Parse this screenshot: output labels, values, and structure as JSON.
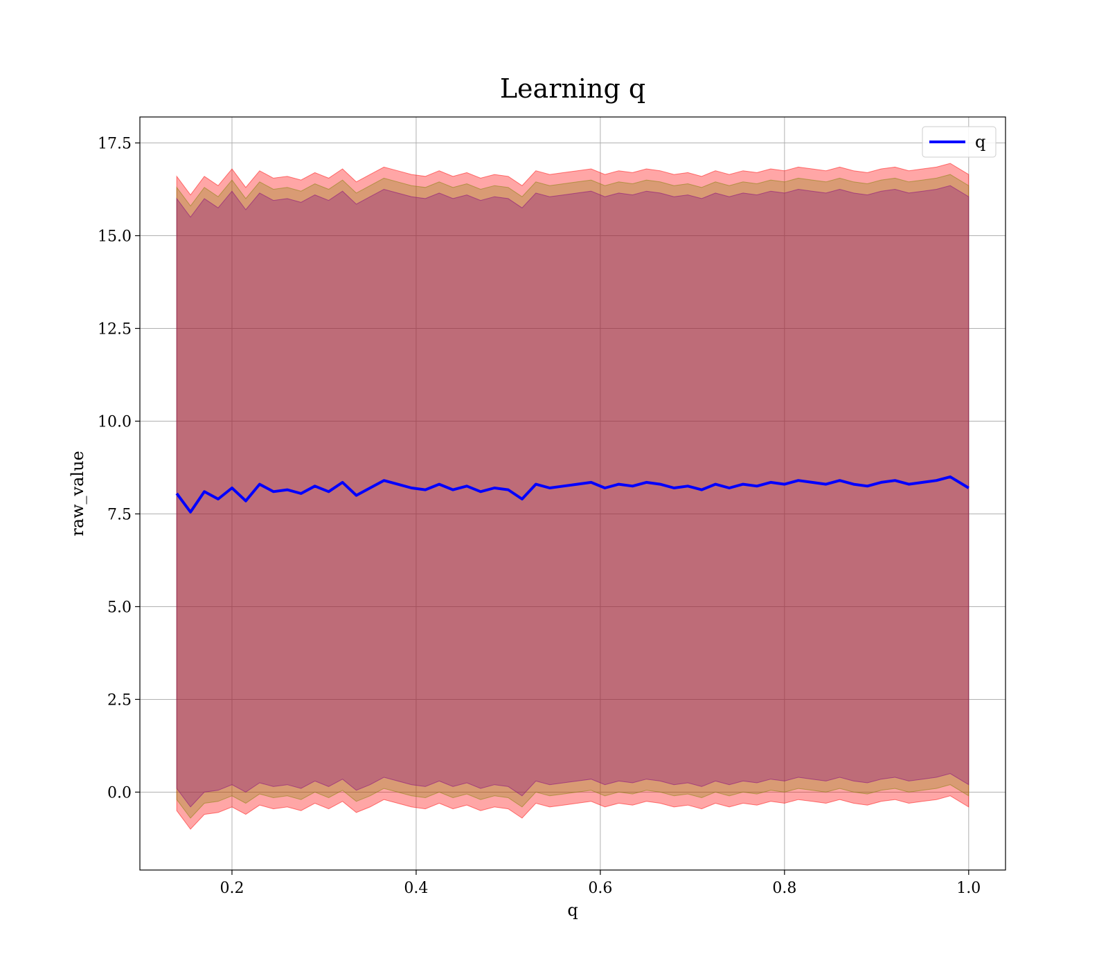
{
  "chart_data": {
    "type": "line",
    "title": "Learning q",
    "xlabel": "q",
    "ylabel": "raw_value",
    "xlim": [
      0.1,
      1.04
    ],
    "ylim": [
      -2.1,
      18.2
    ],
    "x_ticks": [
      0.2,
      0.4,
      0.6,
      0.8,
      1.0
    ],
    "y_ticks": [
      0.0,
      2.5,
      5.0,
      7.5,
      10.0,
      12.5,
      15.0,
      17.5
    ],
    "x_tick_labels": [
      "0.2",
      "0.4",
      "0.6",
      "0.8",
      "1.0"
    ],
    "y_tick_labels": [
      "0.0",
      "2.5",
      "5.0",
      "7.5",
      "10.0",
      "12.5",
      "15.0",
      "17.5"
    ],
    "grid": true,
    "legend_position": "top-right",
    "x": [
      0.14,
      0.155,
      0.17,
      0.185,
      0.2,
      0.215,
      0.23,
      0.245,
      0.26,
      0.275,
      0.29,
      0.305,
      0.32,
      0.335,
      0.35,
      0.365,
      0.38,
      0.395,
      0.41,
      0.425,
      0.44,
      0.455,
      0.47,
      0.485,
      0.5,
      0.515,
      0.53,
      0.545,
      0.56,
      0.575,
      0.59,
      0.605,
      0.62,
      0.635,
      0.65,
      0.665,
      0.68,
      0.695,
      0.71,
      0.725,
      0.74,
      0.755,
      0.77,
      0.785,
      0.8,
      0.815,
      0.83,
      0.845,
      0.86,
      0.875,
      0.89,
      0.905,
      0.92,
      0.935,
      0.95,
      0.965,
      0.98,
      1.0
    ],
    "series": [
      {
        "name": "q",
        "color": "#0000ff",
        "values": [
          8.05,
          7.55,
          8.1,
          7.9,
          8.2,
          7.85,
          8.3,
          8.1,
          8.15,
          8.05,
          8.25,
          8.1,
          8.35,
          8.0,
          8.2,
          8.4,
          8.3,
          8.2,
          8.15,
          8.3,
          8.15,
          8.25,
          8.1,
          8.2,
          8.15,
          7.9,
          8.3,
          8.2,
          8.25,
          8.3,
          8.35,
          8.2,
          8.3,
          8.25,
          8.35,
          8.3,
          8.2,
          8.25,
          8.15,
          8.3,
          8.2,
          8.3,
          8.25,
          8.35,
          8.3,
          8.4,
          8.35,
          8.3,
          8.4,
          8.3,
          8.25,
          8.35,
          8.4,
          8.3,
          8.35,
          8.4,
          8.5,
          8.2
        ]
      }
    ],
    "bands": [
      {
        "color": "#ff0000",
        "opacity": 0.35,
        "lower": [
          -0.5,
          -1.0,
          -0.6,
          -0.55,
          -0.4,
          -0.6,
          -0.35,
          -0.45,
          -0.4,
          -0.5,
          -0.3,
          -0.45,
          -0.25,
          -0.55,
          -0.4,
          -0.2,
          -0.3,
          -0.4,
          -0.45,
          -0.3,
          -0.45,
          -0.35,
          -0.5,
          -0.4,
          -0.45,
          -0.7,
          -0.3,
          -0.4,
          -0.35,
          -0.3,
          -0.25,
          -0.4,
          -0.3,
          -0.35,
          -0.25,
          -0.3,
          -0.4,
          -0.35,
          -0.45,
          -0.3,
          -0.4,
          -0.3,
          -0.35,
          -0.25,
          -0.3,
          -0.2,
          -0.25,
          -0.3,
          -0.2,
          -0.3,
          -0.35,
          -0.25,
          -0.2,
          -0.3,
          -0.25,
          -0.2,
          -0.1,
          -0.4
        ],
        "upper": [
          16.6,
          16.1,
          16.6,
          16.35,
          16.8,
          16.3,
          16.75,
          16.55,
          16.6,
          16.5,
          16.7,
          16.55,
          16.8,
          16.45,
          16.65,
          16.85,
          16.75,
          16.65,
          16.6,
          16.75,
          16.6,
          16.7,
          16.55,
          16.65,
          16.6,
          16.35,
          16.75,
          16.65,
          16.7,
          16.75,
          16.8,
          16.65,
          16.75,
          16.7,
          16.8,
          16.75,
          16.65,
          16.7,
          16.6,
          16.75,
          16.65,
          16.75,
          16.7,
          16.8,
          16.75,
          16.85,
          16.8,
          16.75,
          16.85,
          16.75,
          16.7,
          16.8,
          16.85,
          16.75,
          16.8,
          16.85,
          16.95,
          16.65
        ]
      },
      {
        "color": "#808000",
        "opacity": 0.3,
        "lower": [
          -0.2,
          -0.7,
          -0.3,
          -0.25,
          -0.1,
          -0.3,
          -0.05,
          -0.15,
          -0.1,
          -0.2,
          0.0,
          -0.15,
          0.05,
          -0.25,
          -0.1,
          0.1,
          0.0,
          -0.1,
          -0.15,
          0.0,
          -0.15,
          -0.05,
          -0.2,
          -0.1,
          -0.15,
          -0.4,
          0.0,
          -0.1,
          -0.05,
          0.0,
          0.05,
          -0.1,
          0.0,
          -0.05,
          0.05,
          0.0,
          -0.1,
          -0.05,
          -0.15,
          0.0,
          -0.1,
          0.0,
          -0.05,
          0.05,
          0.0,
          0.1,
          0.05,
          0.0,
          0.1,
          0.0,
          -0.05,
          0.05,
          0.1,
          0.0,
          0.05,
          0.1,
          0.2,
          -0.1
        ],
        "upper": [
          16.3,
          15.8,
          16.3,
          16.05,
          16.5,
          16.0,
          16.45,
          16.25,
          16.3,
          16.2,
          16.4,
          16.25,
          16.5,
          16.15,
          16.35,
          16.55,
          16.45,
          16.35,
          16.3,
          16.45,
          16.3,
          16.4,
          16.25,
          16.35,
          16.3,
          16.05,
          16.45,
          16.35,
          16.4,
          16.45,
          16.5,
          16.35,
          16.45,
          16.4,
          16.5,
          16.45,
          16.35,
          16.4,
          16.3,
          16.45,
          16.35,
          16.45,
          16.4,
          16.5,
          16.45,
          16.55,
          16.5,
          16.45,
          16.55,
          16.45,
          16.4,
          16.5,
          16.55,
          16.45,
          16.5,
          16.55,
          16.65,
          16.35
        ]
      },
      {
        "color": "#800080",
        "opacity": 0.3,
        "lower": [
          0.1,
          -0.4,
          0.0,
          0.05,
          0.2,
          0.0,
          0.25,
          0.15,
          0.2,
          0.1,
          0.3,
          0.15,
          0.35,
          0.05,
          0.2,
          0.4,
          0.3,
          0.2,
          0.15,
          0.3,
          0.15,
          0.25,
          0.1,
          0.2,
          0.15,
          -0.1,
          0.3,
          0.2,
          0.25,
          0.3,
          0.35,
          0.2,
          0.3,
          0.25,
          0.35,
          0.3,
          0.2,
          0.25,
          0.15,
          0.3,
          0.2,
          0.3,
          0.25,
          0.35,
          0.3,
          0.4,
          0.35,
          0.3,
          0.4,
          0.3,
          0.25,
          0.35,
          0.4,
          0.3,
          0.35,
          0.4,
          0.5,
          0.2
        ],
        "upper": [
          16.0,
          15.5,
          16.0,
          15.75,
          16.2,
          15.7,
          16.15,
          15.95,
          16.0,
          15.9,
          16.1,
          15.95,
          16.2,
          15.85,
          16.05,
          16.25,
          16.15,
          16.05,
          16.0,
          16.15,
          16.0,
          16.1,
          15.95,
          16.05,
          16.0,
          15.75,
          16.15,
          16.05,
          16.1,
          16.15,
          16.2,
          16.05,
          16.15,
          16.1,
          16.2,
          16.15,
          16.05,
          16.1,
          16.0,
          16.15,
          16.05,
          16.15,
          16.1,
          16.2,
          16.15,
          16.25,
          16.2,
          16.15,
          16.25,
          16.15,
          16.1,
          16.2,
          16.25,
          16.15,
          16.2,
          16.25,
          16.35,
          16.05
        ]
      }
    ]
  }
}
